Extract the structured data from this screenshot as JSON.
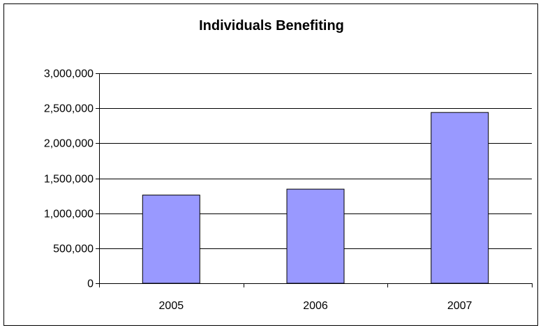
{
  "chart_data": {
    "type": "bar",
    "title": "Individuals Benefiting",
    "xlabel": "",
    "ylabel": "",
    "categories": [
      "2005",
      "2006",
      "2007"
    ],
    "values": [
      1260000,
      1345000,
      2440000
    ],
    "ylim": [
      0,
      3000000
    ],
    "yticks": [
      0,
      500000,
      1000000,
      1500000,
      2000000,
      2500000,
      3000000
    ],
    "ytick_labels": [
      "0",
      "500,000",
      "1,000,000",
      "1,500,000",
      "2,000,000",
      "2,500,000",
      "3,000,000"
    ],
    "grid": "horizontal",
    "legend": "none",
    "bar_color": "#9999ff",
    "bar_border_color": "#000000"
  }
}
